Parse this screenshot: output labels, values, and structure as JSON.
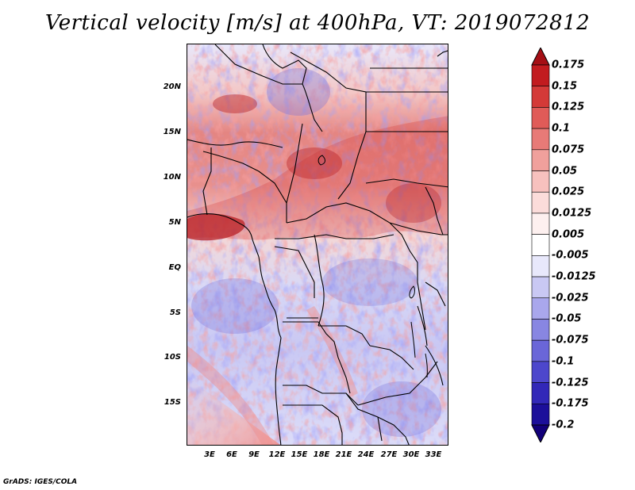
{
  "title": "Vertical velocity [m/s] at 400hPa, VT: 2019072812",
  "footer": "GrADS: IGES/COLA",
  "axes": {
    "latitude_labels": [
      "20N",
      "15N",
      "10N",
      "5N",
      "EQ",
      "5S",
      "10S",
      "15S"
    ],
    "longitude_labels": [
      "3E",
      "6E",
      "9E",
      "12E",
      "15E",
      "18E",
      "21E",
      "24E",
      "27E",
      "30E",
      "33E"
    ]
  },
  "colorbar": {
    "levels": [
      "0.175",
      "0.15",
      "0.125",
      "0.1",
      "0.075",
      "0.05",
      "0.025",
      "0.0125",
      "0.005",
      "-0.005",
      "-0.0125",
      "-0.025",
      "-0.05",
      "-0.075",
      "-0.1",
      "-0.125",
      "-0.175",
      "-0.2"
    ],
    "colors": [
      "#a50f15",
      "#c21b1f",
      "#d43a38",
      "#e05b58",
      "#e87a77",
      "#f0a09c",
      "#f7c1be",
      "#fbdcda",
      "#fdf0ef",
      "#ffffff",
      "#e8e8fb",
      "#c9c8f3",
      "#a9a7ec",
      "#8886e2",
      "#6a66d8",
      "#4d47cc",
      "#3228b8",
      "#1c0f9a",
      "#12007a"
    ]
  },
  "colors": {
    "land_border": "#000000",
    "positive": "#d43a38",
    "negative": "#6a66d8"
  }
}
